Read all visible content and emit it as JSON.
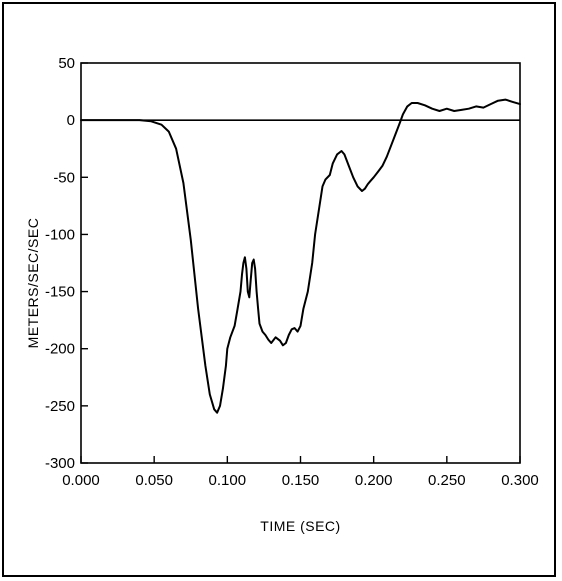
{
  "chart_data": {
    "type": "line",
    "title": "",
    "xlabel": "TIME (SEC)",
    "ylabel": "METERS/SEC/SEC",
    "xlim": [
      0.0,
      0.3
    ],
    "ylim": [
      -300,
      50
    ],
    "x_ticks": [
      0.0,
      0.05,
      0.1,
      0.15,
      0.2,
      0.25,
      0.3
    ],
    "x_tick_labels": [
      "0.000",
      "0.050",
      "0.100",
      "0.150",
      "0.200",
      "0.250",
      "0.300"
    ],
    "y_ticks": [
      50,
      0,
      -50,
      -100,
      -150,
      -200,
      -250,
      -300
    ],
    "y_tick_labels": [
      "50",
      "0",
      "-50",
      "-100",
      "-150",
      "-200",
      "-250",
      "-300"
    ],
    "grid": false,
    "reference_line_y": 0,
    "series": [
      {
        "x": [
          0.0,
          0.01,
          0.02,
          0.03,
          0.04,
          0.048,
          0.055,
          0.06,
          0.065,
          0.07,
          0.075,
          0.08,
          0.085,
          0.088,
          0.091,
          0.093,
          0.095,
          0.097,
          0.099,
          0.1,
          0.102,
          0.105,
          0.107,
          0.109,
          0.11,
          0.111,
          0.112,
          0.113,
          0.114,
          0.115,
          0.116,
          0.117,
          0.118,
          0.119,
          0.12,
          0.121,
          0.122,
          0.124,
          0.126,
          0.128,
          0.13,
          0.133,
          0.136,
          0.138,
          0.14,
          0.142,
          0.144,
          0.146,
          0.148,
          0.15,
          0.152,
          0.155,
          0.158,
          0.16,
          0.163,
          0.165,
          0.167,
          0.17,
          0.172,
          0.175,
          0.178,
          0.18,
          0.183,
          0.186,
          0.189,
          0.192,
          0.194,
          0.196,
          0.198,
          0.2,
          0.203,
          0.206,
          0.209,
          0.212,
          0.215,
          0.218,
          0.22,
          0.223,
          0.226,
          0.23,
          0.235,
          0.24,
          0.245,
          0.25,
          0.255,
          0.26,
          0.265,
          0.27,
          0.275,
          0.28,
          0.285,
          0.29,
          0.295,
          0.3
        ],
        "y": [
          0,
          0,
          0,
          0,
          0,
          -1,
          -4,
          -10,
          -25,
          -55,
          -105,
          -165,
          -215,
          -240,
          -253,
          -256,
          -250,
          -235,
          -215,
          -200,
          -190,
          -180,
          -165,
          -150,
          -135,
          -125,
          -120,
          -130,
          -150,
          -155,
          -140,
          -125,
          -122,
          -130,
          -150,
          -165,
          -178,
          -185,
          -188,
          -192,
          -195,
          -190,
          -193,
          -197,
          -195,
          -188,
          -183,
          -182,
          -185,
          -180,
          -165,
          -150,
          -125,
          -100,
          -75,
          -58,
          -52,
          -48,
          -38,
          -30,
          -27,
          -30,
          -40,
          -50,
          -58,
          -62,
          -60,
          -56,
          -53,
          -50,
          -45,
          -40,
          -32,
          -22,
          -12,
          -2,
          5,
          12,
          15,
          15,
          13,
          10,
          8,
          10,
          8,
          9,
          10,
          12,
          11,
          14,
          17,
          18,
          16,
          14
        ]
      }
    ]
  }
}
